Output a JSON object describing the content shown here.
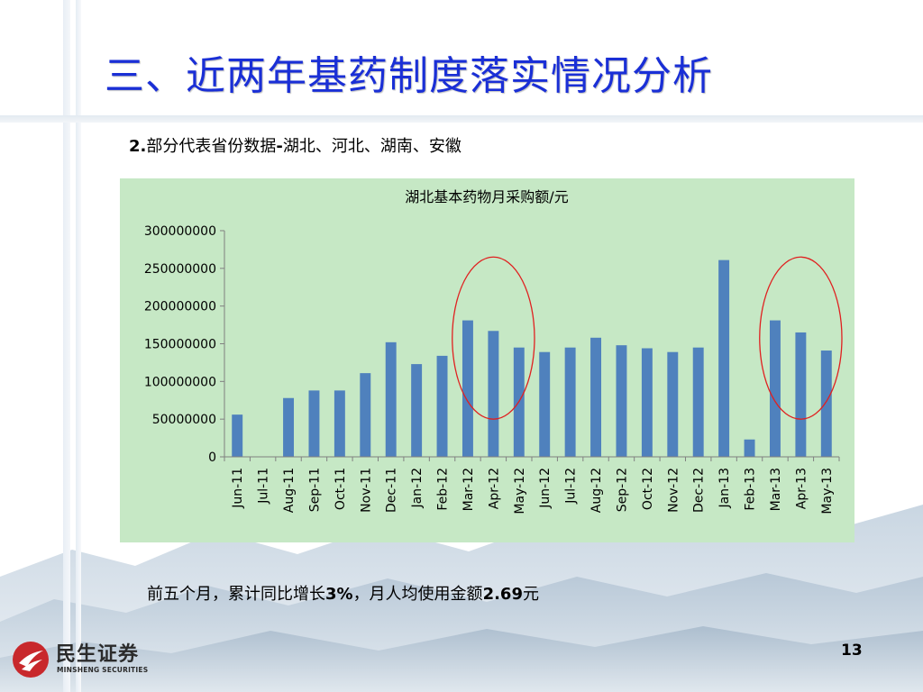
{
  "slide": {
    "title": "三、近两年基药制度落实情况分析",
    "subtitle_num": "2.",
    "subtitle_a": "部分代表省份数据",
    "subtitle_dash": "-",
    "subtitle_b": "湖北、河北、湖南、安徽",
    "summary_a": "前五个月，累计同比增长",
    "summary_pct": "3%",
    "summary_b": "，月人均使用金额",
    "summary_amt": "2.69",
    "summary_c": "元",
    "page_number": "13"
  },
  "logo": {
    "name_cn": "民生证券",
    "name_en": "MINSHENG SECURITIES"
  },
  "colors": {
    "title": "#1a2fd6",
    "chart_bg": "#c6e8c5",
    "bar": "#4f81bd",
    "circle": "#e02020",
    "logo_red": "#c8282c"
  },
  "chart_data": {
    "type": "bar",
    "title": "湖北基本药物月采购额/元",
    "categories": [
      "Jun-11",
      "Jul-11",
      "Aug-11",
      "Sep-11",
      "Oct-11",
      "Nov-11",
      "Dec-11",
      "Jan-12",
      "Feb-12",
      "Mar-12",
      "Apr-12",
      "May-12",
      "Jun-12",
      "Jul-12",
      "Aug-12",
      "Sep-12",
      "Oct-12",
      "Nov-12",
      "Dec-12",
      "Jan-13",
      "Feb-13",
      "Mar-13",
      "Apr-13",
      "May-13"
    ],
    "values": [
      56000000,
      0,
      78000000,
      88000000,
      88000000,
      111000000,
      152000000,
      123000000,
      134000000,
      181000000,
      167000000,
      145000000,
      139000000,
      145000000,
      158000000,
      148000000,
      144000000,
      139000000,
      145000000,
      261000000,
      23000000,
      181000000,
      165000000,
      141000000
    ],
    "ylim": [
      0,
      300000000
    ],
    "yticks": [
      "0",
      "50000000",
      "100000000",
      "150000000",
      "200000000",
      "250000000",
      "300000000"
    ],
    "xlabel": "",
    "ylabel": "",
    "grid": false,
    "legend": "none",
    "highlighted_ranges": [
      [
        "Mar-12",
        "May-12"
      ],
      [
        "Mar-13",
        "May-13"
      ]
    ]
  }
}
